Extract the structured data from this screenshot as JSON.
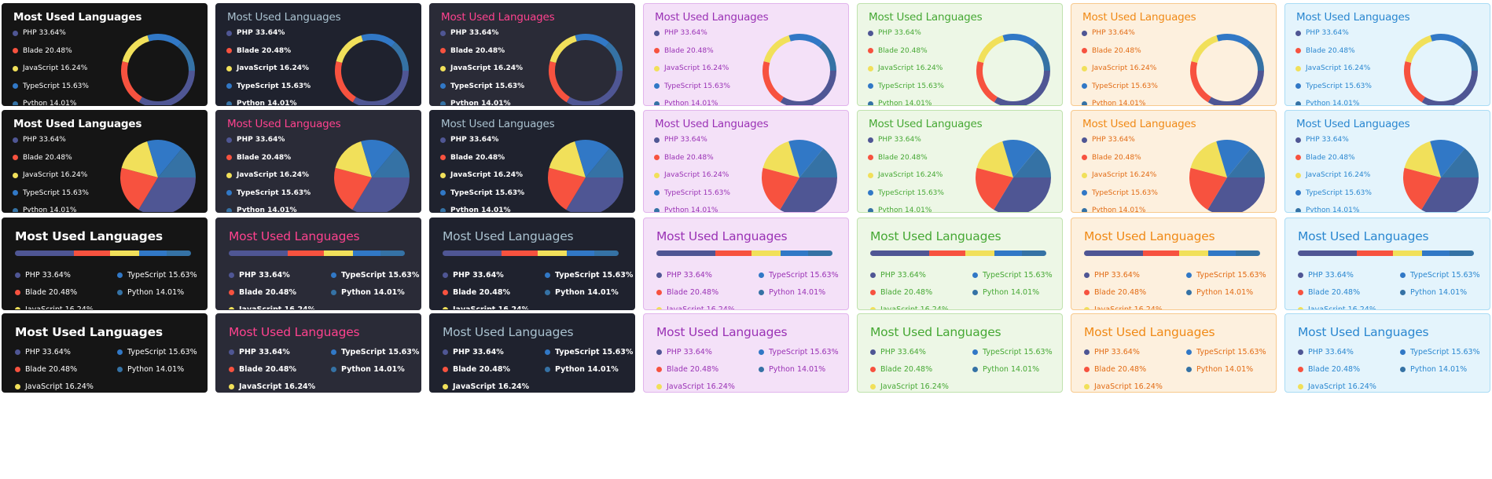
{
  "chart_data": {
    "type": "pie",
    "title": "Most Used Languages",
    "slices": [
      {
        "name": "PHP",
        "label": "PHP 33.64%",
        "value": 33.64,
        "color": "#4f5694"
      },
      {
        "name": "Blade",
        "label": "Blade 20.48%",
        "value": 20.48,
        "color": "#f7523f"
      },
      {
        "name": "JavaScript",
        "label": "JavaScript 16.24%",
        "value": 16.24,
        "color": "#f1e05a"
      },
      {
        "name": "TypeScript",
        "label": "TypeScript 15.63%",
        "value": 15.63,
        "color": "#3178c6"
      },
      {
        "name": "Python",
        "label": "Python 14.01%",
        "value": 14.01,
        "color": "#3572a5"
      }
    ],
    "layouts": [
      "donut",
      "pie",
      "compact-bar",
      "compact-list"
    ]
  },
  "themes": [
    {
      "name": "dark",
      "bg": "#151515",
      "border": "#151515",
      "title": "#ffffff",
      "text": "#ffffff"
    },
    {
      "name": "radical-muted",
      "bg": "#1f222e",
      "border": "#1f222e",
      "title": "#a9c1cf",
      "text": "#ffffff"
    },
    {
      "name": "radical",
      "bg": "#2a2b37",
      "border": "#2a2b37",
      "title": "#fe428e",
      "text": "#ffffff"
    },
    {
      "name": "purple",
      "bg": "#f4e1f8",
      "border": "#e1b4ec",
      "title": "#9a32b5",
      "text": "#9a32b5"
    },
    {
      "name": "green",
      "bg": "#edf7e6",
      "border": "#bfe2ad",
      "title": "#46a834",
      "text": "#46a834"
    },
    {
      "name": "orange",
      "bg": "#fdf0de",
      "border": "#f8c98d",
      "title": "#f08a17",
      "text": "#e26b14"
    },
    {
      "name": "blue",
      "bg": "#e4f4fc",
      "border": "#a9dcf5",
      "title": "#2a87d0",
      "text": "#2a87d0"
    }
  ],
  "rows": [
    {
      "layout": "donut",
      "themes": [
        0,
        1,
        2,
        3,
        4,
        5,
        6
      ]
    },
    {
      "layout": "pie",
      "themes": [
        0,
        2,
        1,
        3,
        4,
        5,
        6
      ]
    },
    {
      "layout": "compact-bar",
      "themes": [
        0,
        2,
        1,
        3,
        4,
        5,
        6
      ]
    },
    {
      "layout": "compact-list",
      "themes": [
        0,
        2,
        1,
        3,
        4,
        5,
        6
      ]
    }
  ]
}
